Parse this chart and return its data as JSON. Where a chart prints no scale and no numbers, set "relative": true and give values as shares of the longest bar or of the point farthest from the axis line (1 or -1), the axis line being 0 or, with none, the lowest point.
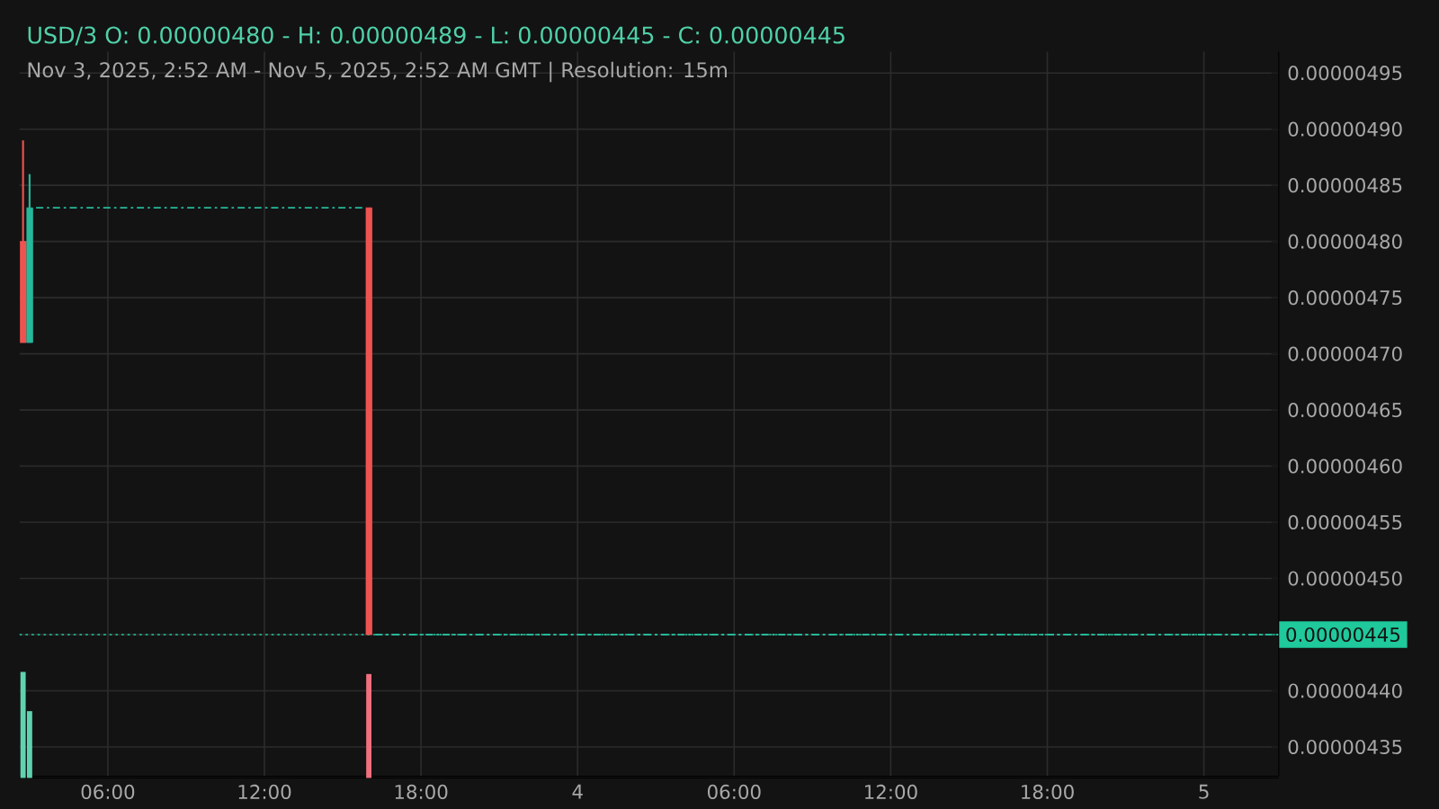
{
  "chart_data": [
    {
      "type": "candlestick",
      "title": "USD/3  O: 0.00000480 - H: 0.00000489 - L: 0.00000445 - C: 0.00000445",
      "subtitle": "Nov 3, 2025, 2:52 AM - Nov 5, 2025, 2:52 AM GMT   |   Resolution: 15m",
      "x": [
        "2025-11-03T02:45",
        "2025-11-03T03:00",
        "2025-11-03T16:00"
      ],
      "ohlc": [
        [
          4.8e-06,
          4.89e-06,
          4.71e-06,
          4.71e-06
        ],
        [
          4.71e-06,
          4.86e-06,
          4.71e-06,
          4.83e-06
        ],
        [
          4.83e-06,
          4.83e-06,
          4.45e-06,
          4.45e-06
        ]
      ],
      "colors": [
        "#ef5350",
        "#26b89a",
        "#ef5350"
      ],
      "series": [
        {
          "type": "line",
          "color": "#26b89a",
          "line_style": "dashed",
          "x": [
            "2025-11-03T03:15",
            "2025-11-03T15:45",
            "2025-11-03T16:00",
            "2025-11-03T16:15",
            "2025-11-05T02:52"
          ],
          "values": [
            4.83e-06,
            4.83e-06,
            null,
            4.45e-06,
            4.45e-06
          ]
        }
      ],
      "ref_lines": [
        {
          "axis": "y",
          "value": 4.45e-06,
          "label": "0.00000445",
          "color": "#1fc99b",
          "line_style": "dotted"
        }
      ],
      "xlim": [
        "2025-11-03T02:37",
        "2025-11-05T02:52"
      ],
      "ylim": [
        4.324e-06,
        4.969e-06
      ],
      "xticks": [
        {
          "value": "2025-11-03T06:00",
          "label": "06:00"
        },
        {
          "value": "2025-11-03T12:00",
          "label": "12:00"
        },
        {
          "value": "2025-11-03T18:00",
          "label": "18:00"
        },
        {
          "value": "2025-11-04T00:00",
          "label": "4"
        },
        {
          "value": "2025-11-04T06:00",
          "label": "06:00"
        },
        {
          "value": "2025-11-04T12:00",
          "label": "12:00"
        },
        {
          "value": "2025-11-04T18:00",
          "label": "18:00"
        },
        {
          "value": "2025-11-05T00:00",
          "label": "5"
        }
      ],
      "yticks": [
        {
          "value": 4.35e-06,
          "label": "0.00000435"
        },
        {
          "value": 4.4e-06,
          "label": "0.00000440"
        },
        {
          "value": 4.45e-06,
          "label": "0.00000445"
        },
        {
          "value": 4.5e-06,
          "label": "0.00000450"
        },
        {
          "value": 4.55e-06,
          "label": "0.00000455"
        },
        {
          "value": 4.6e-06,
          "label": "0.00000460"
        },
        {
          "value": 4.65e-06,
          "label": "0.00000465"
        },
        {
          "value": 4.7e-06,
          "label": "0.00000470"
        },
        {
          "value": 4.75e-06,
          "label": "0.00000475"
        },
        {
          "value": 4.8e-06,
          "label": "0.00000480"
        },
        {
          "value": 4.85e-06,
          "label": "0.00000485"
        },
        {
          "value": 4.9e-06,
          "label": "0.00000490"
        },
        {
          "value": 4.95e-06,
          "label": "0.00000495"
        }
      ],
      "grid": true
    },
    {
      "type": "bar",
      "relative": true,
      "tick_labels": false,
      "x": [
        "2025-11-03T02:45",
        "2025-11-03T03:00",
        "2025-11-03T16:00"
      ],
      "values": [
        1,
        0.63,
        0.98
      ],
      "colors": [
        "#5fd3b0",
        "#5fd3b0",
        "#f0707e"
      ],
      "xlim": [
        "2025-11-03T02:37",
        "2025-11-05T02:52"
      ]
    }
  ]
}
